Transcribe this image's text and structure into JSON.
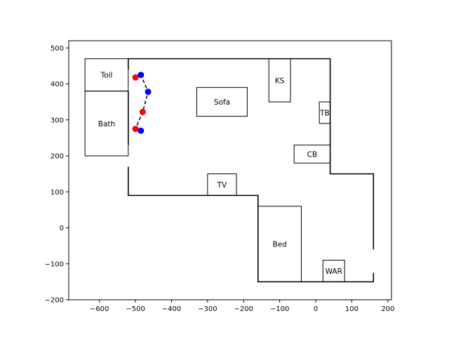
{
  "chart_data": {
    "type": "floor-plan-scatter",
    "xlim": [
      -685,
      210
    ],
    "ylim": [
      -200,
      520
    ],
    "xticks": [
      -600,
      -500,
      -400,
      -300,
      -200,
      -100,
      0,
      100,
      200
    ],
    "yticks": [
      -200,
      -100,
      0,
      100,
      200,
      300,
      400,
      500
    ],
    "grid": false,
    "colors": {
      "wall": "#000000",
      "red_point": "#ff0000",
      "blue_point": "#0000ff",
      "path": "#000000"
    },
    "walls": [
      {
        "points": [
          [
            -520,
            470
          ],
          [
            40,
            470
          ],
          [
            40,
            150
          ],
          [
            160,
            150
          ],
          [
            160,
            -60
          ]
        ]
      },
      {
        "points": [
          [
            160,
            -125
          ],
          [
            160,
            -150
          ],
          [
            -160,
            -150
          ],
          [
            -160,
            90
          ],
          [
            -520,
            90
          ],
          [
            -520,
            170
          ]
        ]
      },
      {
        "points": [
          [
            -520,
            230
          ],
          [
            -520,
            380
          ]
        ]
      },
      {
        "points": [
          [
            -520,
            440
          ],
          [
            -520,
            470
          ]
        ]
      }
    ],
    "furniture": [
      {
        "label": "Toil",
        "x0": -640,
        "x1": -520,
        "y0": 380,
        "y1": 470
      },
      {
        "label": "Bath",
        "x0": -640,
        "x1": -520,
        "y0": 200,
        "y1": 380
      },
      {
        "label": "Sofa",
        "x0": -330,
        "x1": -190,
        "y0": 310,
        "y1": 390
      },
      {
        "label": "KS",
        "x0": -130,
        "x1": -70,
        "y0": 350,
        "y1": 470
      },
      {
        "label": "TB",
        "x0": 10,
        "x1": 40,
        "y0": 290,
        "y1": 350
      },
      {
        "label": "CB",
        "x0": -60,
        "x1": 40,
        "y0": 180,
        "y1": 230
      },
      {
        "label": "TV",
        "x0": -300,
        "x1": -220,
        "y0": 90,
        "y1": 150
      },
      {
        "label": "Bed",
        "x0": -160,
        "x1": -40,
        "y0": -150,
        "y1": 60
      },
      {
        "label": "WAR",
        "x0": 20,
        "x1": 80,
        "y0": -150,
        "y1": -90
      }
    ],
    "path": [
      [
        -500,
        418
      ],
      [
        -485,
        425
      ],
      [
        -465,
        378
      ],
      [
        -480,
        322
      ],
      [
        -500,
        275
      ],
      [
        -485,
        270
      ]
    ],
    "red_points": [
      [
        -500,
        418
      ],
      [
        -480,
        322
      ],
      [
        -500,
        275
      ]
    ],
    "blue_points": [
      [
        -485,
        425
      ],
      [
        -465,
        378
      ],
      [
        -485,
        270
      ]
    ]
  }
}
